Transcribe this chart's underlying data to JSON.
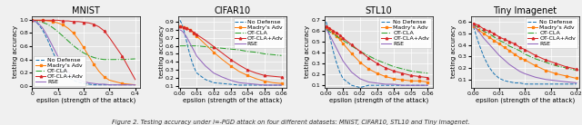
{
  "title_fontsize": 7,
  "label_fontsize": 5,
  "tick_fontsize": 4.5,
  "legend_fontsize": 4.5,
  "subplots": [
    {
      "title": "MNIST",
      "xlabel": "epsilon (strength of the attack)",
      "ylabel": "testing accuracy",
      "xlim": [
        0.0,
        0.42
      ],
      "ylim": [
        -0.02,
        1.05
      ],
      "xticks": [
        0.0,
        0.1,
        0.2,
        0.3,
        0.4
      ],
      "yticks": [
        0.0,
        0.2,
        0.4,
        0.6,
        0.8,
        1.0
      ],
      "legend_loc": "lower left",
      "series": [
        {
          "label": "No Defense",
          "color": "#1f77b4",
          "linestyle": "--",
          "marker": null,
          "x": [
            0.0,
            0.02,
            0.04,
            0.06,
            0.08,
            0.1,
            0.12,
            0.14,
            0.16,
            0.18,
            0.2,
            0.22,
            0.24,
            0.26,
            0.28,
            0.3,
            0.35,
            0.4
          ],
          "y": [
            0.99,
            0.95,
            0.85,
            0.7,
            0.52,
            0.35,
            0.22,
            0.14,
            0.09,
            0.06,
            0.04,
            0.03,
            0.02,
            0.02,
            0.02,
            0.02,
            0.02,
            0.02
          ]
        },
        {
          "label": "Madry's Adv",
          "color": "#ff7f0e",
          "linestyle": "-",
          "marker": "s",
          "markersize": 1.8,
          "x": [
            0.0,
            0.02,
            0.04,
            0.06,
            0.08,
            0.1,
            0.12,
            0.14,
            0.16,
            0.18,
            0.2,
            0.22,
            0.24,
            0.26,
            0.28,
            0.3,
            0.35,
            0.4
          ],
          "y": [
            0.99,
            0.99,
            0.99,
            0.98,
            0.97,
            0.95,
            0.92,
            0.87,
            0.8,
            0.7,
            0.58,
            0.45,
            0.33,
            0.22,
            0.14,
            0.09,
            0.04,
            0.02
          ]
        },
        {
          "label": "OT-CLA",
          "color": "#2ca02c",
          "linestyle": "-.",
          "marker": null,
          "x": [
            0.0,
            0.02,
            0.04,
            0.06,
            0.08,
            0.1,
            0.12,
            0.14,
            0.16,
            0.18,
            0.2,
            0.22,
            0.24,
            0.26,
            0.28,
            0.3,
            0.35,
            0.4
          ],
          "y": [
            0.99,
            0.98,
            0.96,
            0.93,
            0.88,
            0.82,
            0.75,
            0.68,
            0.61,
            0.55,
            0.5,
            0.46,
            0.43,
            0.41,
            0.4,
            0.4,
            0.4,
            0.41
          ]
        },
        {
          "label": "OT-CLA+Adv",
          "color": "#d62728",
          "linestyle": "-",
          "marker": "^",
          "markersize": 1.8,
          "x": [
            0.0,
            0.02,
            0.04,
            0.06,
            0.08,
            0.1,
            0.12,
            0.14,
            0.16,
            0.18,
            0.2,
            0.22,
            0.24,
            0.26,
            0.28,
            0.3,
            0.35,
            0.4
          ],
          "y": [
            0.99,
            0.99,
            0.99,
            0.99,
            0.99,
            0.99,
            0.98,
            0.98,
            0.97,
            0.97,
            0.96,
            0.95,
            0.93,
            0.89,
            0.83,
            0.73,
            0.45,
            0.1
          ]
        },
        {
          "label": "RSE",
          "color": "#9467bd",
          "linestyle": "-",
          "marker": null,
          "x": [
            0.0,
            0.02,
            0.04,
            0.06,
            0.08,
            0.1,
            0.12,
            0.14,
            0.16,
            0.18,
            0.2,
            0.22,
            0.24,
            0.26,
            0.28,
            0.3,
            0.35,
            0.4
          ],
          "y": [
            0.99,
            0.96,
            0.88,
            0.75,
            0.6,
            0.45,
            0.32,
            0.22,
            0.15,
            0.1,
            0.07,
            0.05,
            0.04,
            0.03,
            0.03,
            0.02,
            0.02,
            0.02
          ]
        }
      ]
    },
    {
      "title": "CIFAR10",
      "xlabel": "epsilon (strength of the attack)",
      "ylabel": "testing accuracy",
      "xlim": [
        -0.001,
        0.063
      ],
      "ylim": [
        0.08,
        0.97
      ],
      "xticks": [
        0.0,
        0.01,
        0.02,
        0.03,
        0.04,
        0.05,
        0.06
      ],
      "yticks": [
        0.1,
        0.2,
        0.3,
        0.4,
        0.5,
        0.6,
        0.7,
        0.8,
        0.9
      ],
      "legend_loc": "upper right",
      "series": [
        {
          "label": "No Defense",
          "color": "#1f77b4",
          "linestyle": "--",
          "marker": null,
          "x": [
            0.0,
            0.001,
            0.002,
            0.003,
            0.004,
            0.005,
            0.006,
            0.007,
            0.008,
            0.009,
            0.01,
            0.015,
            0.02,
            0.025,
            0.03,
            0.035,
            0.04,
            0.045,
            0.05,
            0.055,
            0.06
          ],
          "y": [
            0.92,
            0.88,
            0.82,
            0.74,
            0.65,
            0.56,
            0.48,
            0.41,
            0.35,
            0.3,
            0.26,
            0.18,
            0.14,
            0.13,
            0.12,
            0.11,
            0.11,
            0.11,
            0.11,
            0.11,
            0.11
          ]
        },
        {
          "label": "Madry's Adv",
          "color": "#ff7f0e",
          "linestyle": "-",
          "marker": "s",
          "markersize": 1.8,
          "x": [
            0.0,
            0.001,
            0.002,
            0.003,
            0.004,
            0.005,
            0.006,
            0.007,
            0.008,
            0.009,
            0.01,
            0.015,
            0.02,
            0.025,
            0.03,
            0.035,
            0.04,
            0.045,
            0.05,
            0.055,
            0.06
          ],
          "y": [
            0.84,
            0.84,
            0.83,
            0.83,
            0.82,
            0.81,
            0.8,
            0.78,
            0.76,
            0.74,
            0.72,
            0.62,
            0.52,
            0.43,
            0.35,
            0.28,
            0.23,
            0.19,
            0.16,
            0.14,
            0.13
          ]
        },
        {
          "label": "OT-CLA",
          "color": "#2ca02c",
          "linestyle": "-.",
          "marker": null,
          "x": [
            0.0,
            0.001,
            0.002,
            0.003,
            0.004,
            0.005,
            0.006,
            0.007,
            0.008,
            0.009,
            0.01,
            0.015,
            0.02,
            0.025,
            0.03,
            0.035,
            0.04,
            0.045,
            0.05,
            0.055,
            0.06
          ],
          "y": [
            0.6,
            0.6,
            0.6,
            0.6,
            0.6,
            0.6,
            0.6,
            0.6,
            0.6,
            0.6,
            0.6,
            0.59,
            0.58,
            0.57,
            0.56,
            0.55,
            0.53,
            0.52,
            0.5,
            0.49,
            0.48
          ]
        },
        {
          "label": "OT-CLA+Adv",
          "color": "#d62728",
          "linestyle": "-",
          "marker": "^",
          "markersize": 1.8,
          "x": [
            0.0,
            0.001,
            0.002,
            0.003,
            0.004,
            0.005,
            0.006,
            0.007,
            0.008,
            0.009,
            0.01,
            0.015,
            0.02,
            0.025,
            0.03,
            0.035,
            0.04,
            0.045,
            0.05,
            0.055,
            0.06
          ],
          "y": [
            0.84,
            0.84,
            0.83,
            0.83,
            0.82,
            0.81,
            0.8,
            0.79,
            0.77,
            0.76,
            0.74,
            0.67,
            0.59,
            0.51,
            0.43,
            0.36,
            0.3,
            0.26,
            0.23,
            0.22,
            0.21
          ]
        },
        {
          "label": "RSE",
          "color": "#9467bd",
          "linestyle": "-",
          "marker": null,
          "x": [
            0.0,
            0.001,
            0.002,
            0.003,
            0.004,
            0.005,
            0.006,
            0.007,
            0.008,
            0.009,
            0.01,
            0.015,
            0.02,
            0.025,
            0.03,
            0.035,
            0.04,
            0.045,
            0.05,
            0.055,
            0.06
          ],
          "y": [
            0.8,
            0.79,
            0.77,
            0.74,
            0.71,
            0.67,
            0.63,
            0.59,
            0.55,
            0.51,
            0.47,
            0.35,
            0.26,
            0.21,
            0.17,
            0.14,
            0.13,
            0.12,
            0.11,
            0.11,
            0.11
          ]
        }
      ]
    },
    {
      "title": "STL10",
      "xlabel": "epsilon (strength of the attack)",
      "ylabel": "testing accuracy",
      "xlim": [
        -0.001,
        0.063
      ],
      "ylim": [
        0.08,
        0.73
      ],
      "xticks": [
        0.0,
        0.01,
        0.02,
        0.03,
        0.04,
        0.05,
        0.06
      ],
      "yticks": [
        0.1,
        0.2,
        0.3,
        0.4,
        0.5,
        0.6,
        0.7
      ],
      "legend_loc": "upper right",
      "series": [
        {
          "label": "No Defense",
          "color": "#1f77b4",
          "linestyle": "--",
          "marker": null,
          "x": [
            0.0,
            0.002,
            0.004,
            0.006,
            0.008,
            0.01,
            0.015,
            0.02,
            0.025,
            0.03,
            0.035,
            0.04,
            0.045,
            0.05,
            0.055,
            0.06
          ],
          "y": [
            0.68,
            0.55,
            0.42,
            0.31,
            0.22,
            0.16,
            0.1,
            0.08,
            0.1,
            0.1,
            0.1,
            0.1,
            0.1,
            0.1,
            0.1,
            0.1
          ]
        },
        {
          "label": "Madry's Adv",
          "color": "#ff7f0e",
          "linestyle": "-",
          "marker": "s",
          "markersize": 1.8,
          "x": [
            0.0,
            0.002,
            0.004,
            0.006,
            0.008,
            0.01,
            0.015,
            0.02,
            0.025,
            0.03,
            0.035,
            0.04,
            0.045,
            0.05,
            0.055,
            0.06
          ],
          "y": [
            0.63,
            0.61,
            0.58,
            0.55,
            0.52,
            0.48,
            0.39,
            0.31,
            0.25,
            0.21,
            0.18,
            0.16,
            0.15,
            0.14,
            0.14,
            0.13
          ]
        },
        {
          "label": "OT-CLA",
          "color": "#2ca02c",
          "linestyle": "-.",
          "marker": null,
          "x": [
            0.0,
            0.002,
            0.004,
            0.006,
            0.008,
            0.01,
            0.015,
            0.02,
            0.025,
            0.03,
            0.035,
            0.04,
            0.045,
            0.05,
            0.055,
            0.06
          ],
          "y": [
            0.61,
            0.59,
            0.57,
            0.55,
            0.53,
            0.51,
            0.46,
            0.41,
            0.37,
            0.33,
            0.3,
            0.27,
            0.25,
            0.23,
            0.22,
            0.21
          ]
        },
        {
          "label": "OT-CLA+Adv",
          "color": "#d62728",
          "linestyle": "-",
          "marker": "^",
          "markersize": 1.8,
          "x": [
            0.0,
            0.002,
            0.004,
            0.006,
            0.008,
            0.01,
            0.015,
            0.02,
            0.025,
            0.03,
            0.035,
            0.04,
            0.045,
            0.05,
            0.055,
            0.06
          ],
          "y": [
            0.64,
            0.62,
            0.6,
            0.58,
            0.56,
            0.53,
            0.47,
            0.41,
            0.35,
            0.3,
            0.26,
            0.23,
            0.21,
            0.19,
            0.18,
            0.17
          ]
        },
        {
          "label": "RSE",
          "color": "#9467bd",
          "linestyle": "-",
          "marker": null,
          "x": [
            0.0,
            0.002,
            0.004,
            0.006,
            0.008,
            0.01,
            0.015,
            0.02,
            0.025,
            0.03,
            0.035,
            0.04,
            0.045,
            0.05,
            0.055,
            0.06
          ],
          "y": [
            0.61,
            0.56,
            0.5,
            0.44,
            0.38,
            0.32,
            0.22,
            0.16,
            0.13,
            0.12,
            0.11,
            0.11,
            0.1,
            0.1,
            0.1,
            0.1
          ]
        }
      ]
    },
    {
      "title": "Tiny Imagenet",
      "xlabel": "epsilon (strength of the attack)",
      "ylabel": "testing accuracy",
      "xlim": [
        -0.0005,
        0.0205
      ],
      "ylim": [
        0.03,
        0.65
      ],
      "xticks": [
        0.0,
        0.005,
        0.01,
        0.015,
        0.02
      ],
      "yticks": [
        0.1,
        0.2,
        0.3,
        0.4,
        0.5,
        0.6
      ],
      "legend_loc": "upper right",
      "series": [
        {
          "label": "No Defense",
          "color": "#1f77b4",
          "linestyle": "--",
          "marker": null,
          "x": [
            0.0,
            0.001,
            0.002,
            0.003,
            0.004,
            0.005,
            0.006,
            0.007,
            0.008,
            0.009,
            0.01,
            0.012,
            0.014,
            0.016,
            0.018,
            0.02
          ],
          "y": [
            0.56,
            0.42,
            0.3,
            0.21,
            0.15,
            0.11,
            0.09,
            0.08,
            0.07,
            0.07,
            0.06,
            0.06,
            0.06,
            0.06,
            0.06,
            0.06
          ]
        },
        {
          "label": "Madry's Adv",
          "color": "#ff7f0e",
          "linestyle": "-",
          "marker": "s",
          "markersize": 1.8,
          "x": [
            0.0,
            0.001,
            0.002,
            0.003,
            0.004,
            0.005,
            0.006,
            0.007,
            0.008,
            0.009,
            0.01,
            0.012,
            0.014,
            0.016,
            0.018,
            0.02
          ],
          "y": [
            0.56,
            0.53,
            0.5,
            0.47,
            0.44,
            0.41,
            0.38,
            0.35,
            0.32,
            0.29,
            0.27,
            0.22,
            0.18,
            0.15,
            0.13,
            0.11
          ]
        },
        {
          "label": "OT-CLA",
          "color": "#2ca02c",
          "linestyle": "-.",
          "marker": null,
          "x": [
            0.0,
            0.001,
            0.002,
            0.003,
            0.004,
            0.005,
            0.006,
            0.007,
            0.008,
            0.009,
            0.01,
            0.012,
            0.014,
            0.016,
            0.018,
            0.02
          ],
          "y": [
            0.58,
            0.55,
            0.52,
            0.5,
            0.47,
            0.44,
            0.42,
            0.39,
            0.37,
            0.35,
            0.32,
            0.28,
            0.25,
            0.22,
            0.2,
            0.18
          ]
        },
        {
          "label": "OT-CLA+Adv",
          "color": "#d62728",
          "linestyle": "-",
          "marker": "^",
          "markersize": 1.8,
          "x": [
            0.0,
            0.001,
            0.002,
            0.003,
            0.004,
            0.005,
            0.006,
            0.007,
            0.008,
            0.009,
            0.01,
            0.012,
            0.014,
            0.016,
            0.018,
            0.02
          ],
          "y": [
            0.59,
            0.57,
            0.54,
            0.52,
            0.5,
            0.47,
            0.45,
            0.43,
            0.41,
            0.38,
            0.36,
            0.31,
            0.27,
            0.24,
            0.21,
            0.19
          ]
        },
        {
          "label": "RSE",
          "color": "#9467bd",
          "linestyle": "-",
          "marker": null,
          "x": [
            0.0,
            0.001,
            0.002,
            0.003,
            0.004,
            0.005,
            0.006,
            0.007,
            0.008,
            0.009,
            0.01,
            0.012,
            0.014,
            0.016,
            0.018,
            0.02
          ],
          "y": [
            0.57,
            0.52,
            0.46,
            0.41,
            0.36,
            0.31,
            0.27,
            0.23,
            0.2,
            0.17,
            0.15,
            0.12,
            0.1,
            0.09,
            0.08,
            0.07
          ]
        }
      ]
    }
  ],
  "caption": "Figure 2. Testing accuracy under l∞-PGD attack on four different datasets: MNIST, CIFAR10, STL10 and Tiny Imagenet."
}
